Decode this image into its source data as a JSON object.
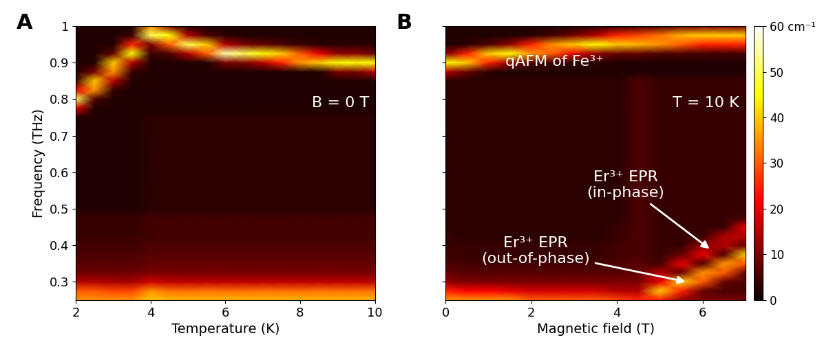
{
  "chart_data": [
    {
      "type": "heatmap",
      "panel": "A",
      "x_label": "Temperature (K)",
      "y_label": "Frequency (THz)",
      "annotations": [
        "B = 0 T"
      ],
      "xlim": [
        2,
        10
      ],
      "xticks": [
        2,
        4,
        6,
        8,
        10
      ],
      "ylim": [
        0.25,
        1.0
      ],
      "yticks": [
        0.3,
        0.4,
        0.5,
        0.6,
        0.7,
        0.8,
        0.9,
        1
      ],
      "tick_labels": true,
      "zlim": [
        0,
        60
      ],
      "x": [
        2,
        2.5,
        3,
        3.5,
        4,
        4.5,
        5,
        5.5,
        6,
        6.5,
        7,
        7.5,
        8,
        8.5,
        9,
        9.5,
        10
      ],
      "y": [
        0.25,
        0.275,
        0.3,
        0.325,
        0.35,
        0.375,
        0.4,
        0.425,
        0.45,
        0.475,
        0.5,
        0.525,
        0.55,
        0.575,
        0.6,
        0.625,
        0.65,
        0.675,
        0.7,
        0.725,
        0.75,
        0.775,
        0.8,
        0.825,
        0.85,
        0.875,
        0.9,
        0.925,
        0.95,
        0.975,
        1.0
      ],
      "z": [
        [
          35,
          35,
          35,
          35,
          40,
          38,
          38,
          38,
          38,
          38,
          38,
          38,
          38,
          38,
          38,
          38,
          38
        ],
        [
          30,
          30,
          28,
          28,
          35,
          32,
          32,
          32,
          32,
          32,
          32,
          32,
          32,
          32,
          32,
          32,
          32
        ],
        [
          15,
          15,
          14,
          14,
          18,
          16,
          16,
          16,
          16,
          16,
          16,
          16,
          16,
          16,
          16,
          16,
          16
        ],
        [
          9,
          9,
          9,
          9,
          10,
          10,
          10,
          10,
          10,
          10,
          10,
          10,
          10,
          10,
          10,
          10,
          10
        ],
        [
          7,
          7,
          7,
          7,
          8,
          8,
          8,
          8,
          8,
          8,
          8,
          8,
          8,
          8,
          8,
          8,
          8
        ],
        [
          6,
          6,
          6,
          6,
          7,
          7,
          7,
          7,
          7,
          7,
          7,
          7,
          7,
          7,
          7,
          7,
          7
        ],
        [
          5,
          5,
          5,
          5,
          6,
          6,
          6,
          6,
          6,
          6,
          6,
          6,
          6,
          6,
          6,
          6,
          6
        ],
        [
          4,
          4,
          4,
          4,
          5,
          5,
          5,
          5,
          5,
          5,
          5,
          5,
          5,
          5,
          5,
          5,
          5
        ],
        [
          4,
          4,
          4,
          4,
          5,
          5,
          5,
          5,
          5,
          5,
          5,
          5,
          5,
          5,
          5,
          5,
          5
        ],
        [
          4,
          4,
          4,
          4,
          5,
          5,
          5,
          5,
          5,
          5,
          5,
          5,
          5,
          5,
          5,
          5,
          5
        ],
        [
          2,
          2,
          2,
          2,
          3,
          3,
          3,
          3,
          3,
          3,
          3,
          3,
          3,
          3,
          3,
          3,
          3
        ],
        [
          2,
          2,
          2,
          2,
          3,
          3,
          3,
          3,
          3,
          3,
          3,
          3,
          3,
          3,
          3,
          3,
          3
        ],
        [
          2,
          2,
          2,
          2,
          3,
          3,
          3,
          3,
          3,
          3,
          3,
          3,
          3,
          3,
          3,
          3,
          3
        ],
        [
          2,
          2,
          2,
          2,
          3,
          3,
          3,
          3,
          3,
          3,
          3,
          3,
          3,
          3,
          3,
          3,
          3
        ],
        [
          2,
          2,
          2,
          2,
          3,
          3,
          3,
          3,
          3,
          3,
          3,
          3,
          3,
          3,
          3,
          3,
          3
        ],
        [
          2,
          2,
          2,
          2,
          3,
          3,
          3,
          3,
          3,
          3,
          3,
          3,
          3,
          3,
          3,
          3,
          3
        ],
        [
          2,
          2,
          2,
          2,
          3,
          3,
          3,
          3,
          3,
          3,
          3,
          3,
          3,
          3,
          3,
          3,
          3
        ],
        [
          2,
          2,
          2,
          2,
          3,
          3,
          3,
          3,
          3,
          3,
          3,
          3,
          3,
          3,
          3,
          3,
          3
        ],
        [
          2,
          2,
          2,
          2,
          3,
          3,
          3,
          3,
          3,
          3,
          3,
          3,
          3,
          3,
          3,
          3,
          3
        ],
        [
          2,
          2,
          2,
          2,
          3,
          3,
          3,
          3,
          3,
          3,
          3,
          3,
          3,
          3,
          3,
          3,
          3
        ],
        [
          2,
          2,
          2,
          2,
          3,
          3,
          3,
          3,
          3,
          3,
          3,
          3,
          3,
          3,
          3,
          3,
          3
        ],
        [
          20,
          2,
          2,
          2,
          2,
          2,
          2,
          2,
          2,
          2,
          2,
          2,
          2,
          2,
          2,
          2,
          2
        ],
        [
          50,
          6,
          2,
          2,
          2,
          2,
          2,
          2,
          2,
          2,
          2,
          2,
          2,
          2,
          2,
          2,
          2
        ],
        [
          20,
          35,
          4,
          2,
          2,
          2,
          2,
          2,
          2,
          2,
          2,
          2,
          2,
          2,
          2,
          2,
          2
        ],
        [
          4,
          40,
          15,
          2,
          2,
          2,
          2,
          2,
          2,
          2,
          2,
          2,
          2,
          2,
          2,
          2,
          2
        ],
        [
          2,
          10,
          35,
          4,
          2,
          2,
          2,
          2,
          2,
          2,
          2,
          2,
          2,
          2,
          10,
          10,
          15
        ],
        [
          2,
          2,
          40,
          15,
          2,
          2,
          2,
          2,
          10,
          10,
          15,
          25,
          35,
          40,
          45,
          45,
          45
        ],
        [
          2,
          2,
          8,
          45,
          4,
          6,
          15,
          30,
          55,
          50,
          45,
          40,
          30,
          20,
          12,
          12,
          8
        ],
        [
          2,
          2,
          2,
          25,
          10,
          30,
          50,
          40,
          15,
          10,
          8,
          6,
          4,
          3,
          3,
          3,
          3
        ],
        [
          2,
          2,
          2,
          4,
          50,
          45,
          15,
          6,
          3,
          2,
          2,
          2,
          2,
          2,
          2,
          2,
          2
        ],
        [
          2,
          2,
          2,
          2,
          35,
          10,
          3,
          2,
          2,
          2,
          2,
          2,
          2,
          2,
          2,
          2,
          2
        ]
      ]
    },
    {
      "type": "heatmap",
      "panel": "B",
      "x_label": "Magnetic field (T)",
      "annotations": [
        "qAFM of Fe³⁺",
        "T = 10 K",
        "Er³⁺ EPR\n(in-phase)",
        "Er³⁺ EPR\n(out-of-phase)"
      ],
      "xlim": [
        0,
        7
      ],
      "xticks": [
        0,
        2,
        4,
        6
      ],
      "ylim": [
        0.25,
        1.0
      ],
      "yticks": [
        0.3,
        0.4,
        0.5,
        0.6,
        0.7,
        0.8,
        0.9,
        1
      ],
      "tick_labels": "x",
      "zlim": [
        0,
        60
      ],
      "colorbar_ticks": [
        0,
        10,
        20,
        30,
        40,
        50,
        {
          "value": 60,
          "label": "60 cm⁻¹"
        }
      ],
      "x": [
        0,
        0.5,
        1,
        1.5,
        2,
        2.5,
        3,
        3.5,
        4,
        4.5,
        5,
        5.5,
        6,
        6.5,
        7
      ],
      "y": [
        0.25,
        0.275,
        0.3,
        0.325,
        0.35,
        0.375,
        0.4,
        0.425,
        0.45,
        0.475,
        0.5,
        0.525,
        0.55,
        0.575,
        0.6,
        0.625,
        0.65,
        0.675,
        0.7,
        0.725,
        0.75,
        0.775,
        0.8,
        0.825,
        0.85,
        0.875,
        0.9,
        0.925,
        0.95,
        0.975,
        1.0
      ],
      "z": [
        [
          35,
          35,
          35,
          35,
          30,
          30,
          30,
          30,
          28,
          25,
          25,
          12,
          10,
          10,
          10
        ],
        [
          25,
          22,
          22,
          20,
          18,
          18,
          18,
          18,
          15,
          15,
          40,
          25,
          8,
          6,
          6
        ],
        [
          12,
          10,
          10,
          10,
          10,
          10,
          10,
          10,
          10,
          10,
          20,
          40,
          30,
          8,
          6
        ],
        [
          8,
          7,
          7,
          7,
          7,
          7,
          7,
          7,
          7,
          8,
          15,
          8,
          35,
          30,
          8
        ],
        [
          6,
          5,
          5,
          5,
          5,
          5,
          5,
          5,
          6,
          7,
          5,
          20,
          6,
          35,
          30
        ],
        [
          5,
          4,
          4,
          4,
          4,
          4,
          4,
          4,
          5,
          6,
          4,
          8,
          20,
          6,
          40
        ],
        [
          4,
          4,
          4,
          4,
          4,
          4,
          4,
          4,
          5,
          6,
          4,
          4,
          12,
          15,
          8
        ],
        [
          4,
          3,
          3,
          3,
          3,
          3,
          3,
          3,
          4,
          6,
          4,
          4,
          4,
          15,
          15
        ],
        [
          3,
          3,
          3,
          3,
          3,
          3,
          3,
          3,
          4,
          6,
          4,
          4,
          4,
          4,
          20
        ],
        [
          3,
          3,
          3,
          3,
          3,
          3,
          3,
          3,
          3,
          6,
          4,
          4,
          4,
          4,
          5
        ],
        [
          3,
          3,
          3,
          3,
          3,
          3,
          3,
          3,
          3,
          6,
          4,
          4,
          4,
          4,
          4
        ],
        [
          3,
          3,
          3,
          3,
          3,
          3,
          3,
          3,
          3,
          6,
          4,
          4,
          4,
          4,
          4
        ],
        [
          3,
          3,
          3,
          3,
          3,
          3,
          3,
          3,
          3,
          6,
          4,
          4,
          4,
          4,
          4
        ],
        [
          3,
          3,
          3,
          3,
          3,
          3,
          3,
          3,
          3,
          6,
          4,
          4,
          4,
          4,
          4
        ],
        [
          3,
          3,
          3,
          3,
          3,
          3,
          3,
          3,
          3,
          6,
          4,
          4,
          4,
          4,
          4
        ],
        [
          3,
          3,
          3,
          3,
          3,
          3,
          3,
          3,
          3,
          6,
          4,
          4,
          4,
          4,
          4
        ],
        [
          3,
          3,
          3,
          3,
          3,
          3,
          3,
          3,
          3,
          6,
          4,
          4,
          4,
          4,
          4
        ],
        [
          3,
          3,
          3,
          3,
          3,
          3,
          3,
          3,
          3,
          6,
          4,
          4,
          4,
          4,
          4
        ],
        [
          3,
          3,
          3,
          3,
          3,
          3,
          3,
          3,
          3,
          6,
          4,
          4,
          4,
          4,
          4
        ],
        [
          3,
          3,
          3,
          3,
          3,
          3,
          3,
          3,
          3,
          6,
          4,
          4,
          4,
          4,
          4
        ],
        [
          3,
          3,
          3,
          3,
          3,
          3,
          3,
          3,
          3,
          6,
          4,
          4,
          4,
          4,
          4
        ],
        [
          3,
          3,
          3,
          3,
          3,
          3,
          3,
          3,
          3,
          6,
          4,
          4,
          4,
          4,
          4
        ],
        [
          3,
          3,
          3,
          3,
          3,
          3,
          3,
          3,
          3,
          6,
          4,
          4,
          4,
          4,
          4
        ],
        [
          3,
          3,
          3,
          3,
          3,
          3,
          3,
          3,
          3,
          6,
          4,
          4,
          4,
          4,
          4
        ],
        [
          3,
          3,
          3,
          3,
          3,
          3,
          3,
          3,
          3,
          6,
          4,
          4,
          4,
          4,
          4
        ],
        [
          15,
          8,
          3,
          2,
          2,
          2,
          2,
          2,
          2,
          2,
          2,
          2,
          2,
          2,
          2
        ],
        [
          45,
          40,
          25,
          12,
          6,
          4,
          3,
          3,
          2,
          2,
          2,
          2,
          2,
          2,
          2
        ],
        [
          10,
          25,
          40,
          45,
          35,
          30,
          20,
          12,
          8,
          8,
          6,
          6,
          5,
          5,
          5
        ],
        [
          2,
          3,
          6,
          12,
          25,
          35,
          40,
          45,
          40,
          38,
          35,
          30,
          25,
          25,
          25
        ],
        [
          2,
          2,
          2,
          2,
          3,
          5,
          10,
          15,
          25,
          28,
          32,
          38,
          40,
          40,
          40
        ],
        [
          2,
          2,
          2,
          2,
          2,
          2,
          2,
          3,
          4,
          5,
          6,
          8,
          10,
          10,
          10
        ]
      ]
    }
  ]
}
